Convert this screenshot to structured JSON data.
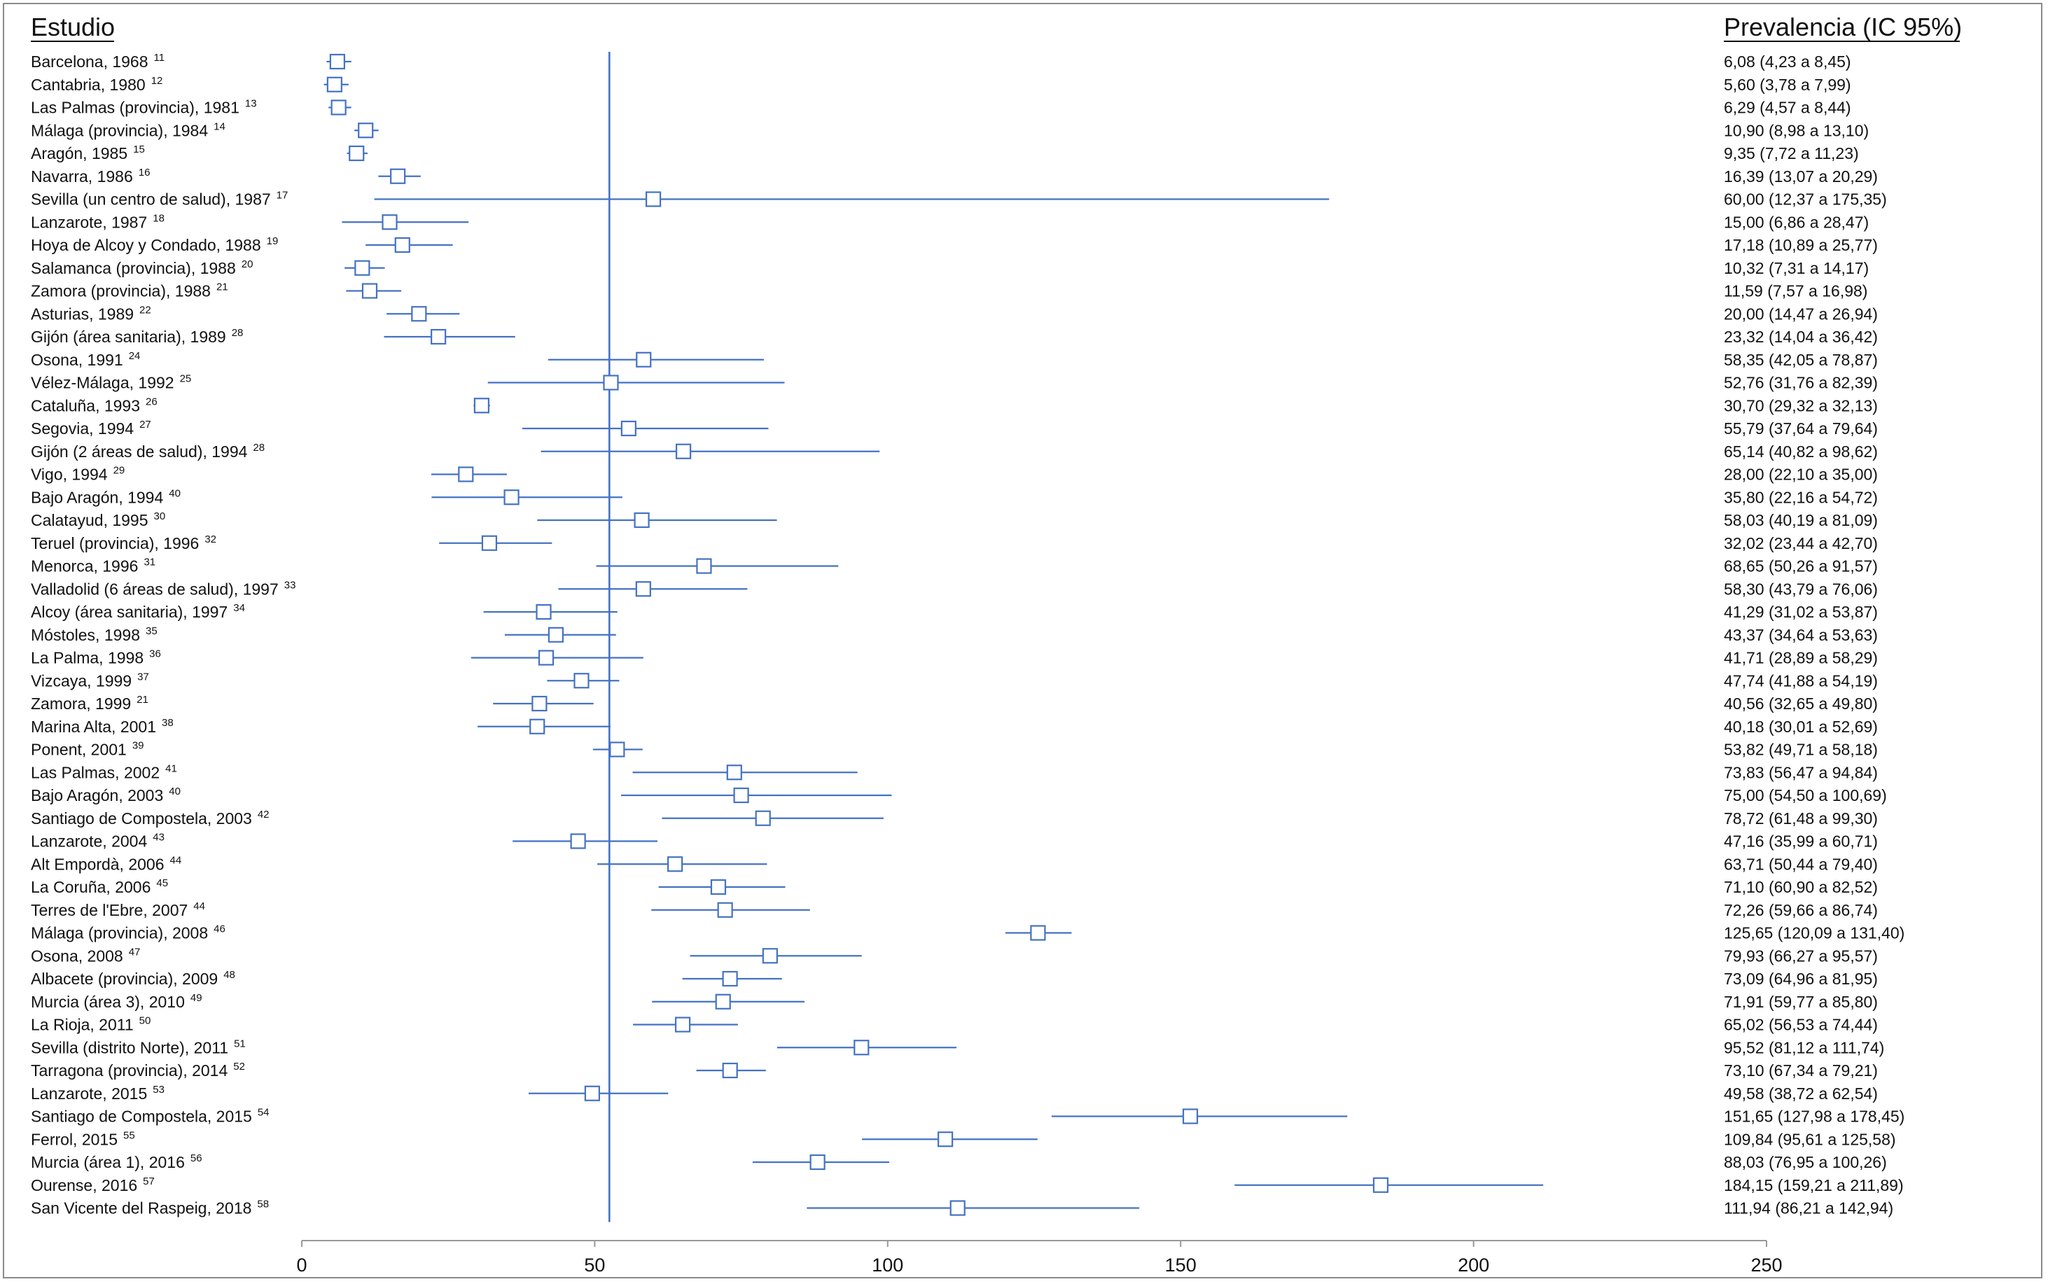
{
  "chart_data": {
    "type": "forest",
    "headers": {
      "study": "Estudio",
      "estimate": "Prevalencia (IC 95%)"
    },
    "reference_line": 52.5,
    "xlim": [
      0,
      250
    ],
    "xticks": [
      "0",
      "50",
      "100",
      "150",
      "200",
      "250"
    ],
    "xtick_values": [
      0,
      50,
      100,
      150,
      200,
      250
    ],
    "color": "#4472c4",
    "rows": [
      {
        "label": "Barcelona, 1968",
        "ref": "11",
        "est": 6.08,
        "lo": 4.23,
        "hi": 8.45,
        "text": "6,08 (4,23 a 8,45)"
      },
      {
        "label": "Cantabria, 1980",
        "ref": "12",
        "est": 5.6,
        "lo": 3.78,
        "hi": 7.99,
        "text": "5,60 (3,78 a 7,99)"
      },
      {
        "label": "Las Palmas (provincia), 1981",
        "ref": "13",
        "est": 6.29,
        "lo": 4.57,
        "hi": 8.44,
        "text": "6,29 (4,57 a 8,44)"
      },
      {
        "label": "Málaga (provincia), 1984",
        "ref": "14",
        "est": 10.9,
        "lo": 8.98,
        "hi": 13.1,
        "text": "10,90 (8,98 a 13,10)"
      },
      {
        "label": "Aragón, 1985",
        "ref": "15",
        "est": 9.35,
        "lo": 7.72,
        "hi": 11.23,
        "text": "9,35 (7,72 a 11,23)"
      },
      {
        "label": "Navarra, 1986",
        "ref": "16",
        "est": 16.39,
        "lo": 13.07,
        "hi": 20.29,
        "text": "16,39 (13,07 a 20,29)"
      },
      {
        "label": "Sevilla (un centro de salud), 1987",
        "ref": "17",
        "est": 60.0,
        "lo": 12.37,
        "hi": 175.35,
        "text": "60,00 (12,37 a 175,35)"
      },
      {
        "label": "Lanzarote, 1987",
        "ref": "18",
        "est": 15.0,
        "lo": 6.86,
        "hi": 28.47,
        "text": "15,00 (6,86 a 28,47)"
      },
      {
        "label": "Hoya de Alcoy y Condado, 1988",
        "ref": "19",
        "est": 17.18,
        "lo": 10.89,
        "hi": 25.77,
        "text": "17,18 (10,89 a 25,77)"
      },
      {
        "label": "Salamanca (provincia), 1988",
        "ref": "20",
        "est": 10.32,
        "lo": 7.31,
        "hi": 14.17,
        "text": "10,32 (7,31 a 14,17)"
      },
      {
        "label": "Zamora (provincia), 1988",
        "ref": "21",
        "est": 11.59,
        "lo": 7.57,
        "hi": 16.98,
        "text": "11,59 (7,57 a 16,98)"
      },
      {
        "label": "Asturias, 1989",
        "ref": "22",
        "est": 20.0,
        "lo": 14.47,
        "hi": 26.94,
        "text": "20,00 (14,47 a 26,94)"
      },
      {
        "label": "Gijón (área sanitaria), 1989",
        "ref": "28",
        "est": 23.32,
        "lo": 14.04,
        "hi": 36.42,
        "text": "23,32 (14,04 a 36,42)"
      },
      {
        "label": "Osona, 1991",
        "ref": "24",
        "est": 58.35,
        "lo": 42.05,
        "hi": 78.87,
        "text": "58,35 (42,05 a 78,87)"
      },
      {
        "label": "Vélez-Málaga, 1992",
        "ref": "25",
        "est": 52.76,
        "lo": 31.76,
        "hi": 82.39,
        "text": "52,76 (31,76 a 82,39)"
      },
      {
        "label": "Cataluña, 1993",
        "ref": "26",
        "est": 30.7,
        "lo": 29.32,
        "hi": 32.13,
        "text": "30,70 (29,32 a 32,13)"
      },
      {
        "label": "Segovia, 1994",
        "ref": "27",
        "est": 55.79,
        "lo": 37.64,
        "hi": 79.64,
        "text": "55,79 (37,64 a 79,64)"
      },
      {
        "label": "Gijón (2 áreas de salud), 1994",
        "ref": "28",
        "est": 65.14,
        "lo": 40.82,
        "hi": 98.62,
        "text": "65,14 (40,82 a 98,62)"
      },
      {
        "label": "Vigo, 1994",
        "ref": "29",
        "est": 28.0,
        "lo": 22.1,
        "hi": 35.0,
        "text": "28,00 (22,10 a 35,00)"
      },
      {
        "label": "Bajo Aragón, 1994",
        "ref": "40",
        "est": 35.8,
        "lo": 22.16,
        "hi": 54.72,
        "text": "35,80 (22,16 a 54,72)"
      },
      {
        "label": "Calatayud, 1995",
        "ref": "30",
        "est": 58.03,
        "lo": 40.19,
        "hi": 81.09,
        "text": "58,03 (40,19 a 81,09)"
      },
      {
        "label": "Teruel (provincia), 1996",
        "ref": "32",
        "est": 32.02,
        "lo": 23.44,
        "hi": 42.7,
        "text": "32,02 (23,44 a 42,70)"
      },
      {
        "label": "Menorca, 1996",
        "ref": "31",
        "est": 68.65,
        "lo": 50.26,
        "hi": 91.57,
        "text": "68,65 (50,26 a 91,57)"
      },
      {
        "label": "Valladolid (6 áreas de salud), 1997",
        "ref": "33",
        "est": 58.3,
        "lo": 43.79,
        "hi": 76.06,
        "text": "58,30 (43,79 a 76,06)"
      },
      {
        "label": "Alcoy (área sanitaria), 1997",
        "ref": "34",
        "est": 41.29,
        "lo": 31.02,
        "hi": 53.87,
        "text": "41,29 (31,02 a 53,87)"
      },
      {
        "label": "Móstoles, 1998",
        "ref": "35",
        "est": 43.37,
        "lo": 34.64,
        "hi": 53.63,
        "text": "43,37 (34,64 a 53,63)"
      },
      {
        "label": "La Palma, 1998",
        "ref": "36",
        "est": 41.71,
        "lo": 28.89,
        "hi": 58.29,
        "text": "41,71 (28,89 a 58,29)"
      },
      {
        "label": "Vizcaya, 1999",
        "ref": "37",
        "est": 47.74,
        "lo": 41.88,
        "hi": 54.19,
        "text": "47,74 (41,88 a 54,19)"
      },
      {
        "label": "Zamora, 1999",
        "ref": "21",
        "est": 40.56,
        "lo": 32.65,
        "hi": 49.8,
        "text": "40,56 (32,65 a 49,80)"
      },
      {
        "label": "Marina Alta, 2001",
        "ref": "38",
        "est": 40.18,
        "lo": 30.01,
        "hi": 52.69,
        "text": "40,18 (30,01 a 52,69)"
      },
      {
        "label": "Ponent, 2001",
        "ref": "39",
        "est": 53.82,
        "lo": 49.71,
        "hi": 58.18,
        "text": "53,82 (49,71 a 58,18)"
      },
      {
        "label": "Las Palmas, 2002",
        "ref": "41",
        "est": 73.83,
        "lo": 56.47,
        "hi": 94.84,
        "text": "73,83 (56,47 a 94,84)"
      },
      {
        "label": "Bajo Aragón, 2003",
        "ref": "40",
        "est": 75.0,
        "lo": 54.5,
        "hi": 100.69,
        "text": "75,00 (54,50 a 100,69)"
      },
      {
        "label": "Santiago de Compostela, 2003",
        "ref": "42",
        "est": 78.72,
        "lo": 61.48,
        "hi": 99.3,
        "text": "78,72 (61,48 a 99,30)"
      },
      {
        "label": "Lanzarote, 2004",
        "ref": "43",
        "est": 47.16,
        "lo": 35.99,
        "hi": 60.71,
        "text": "47,16 (35,99 a 60,71)"
      },
      {
        "label": "Alt Empordà, 2006",
        "ref": "44",
        "est": 63.71,
        "lo": 50.44,
        "hi": 79.4,
        "text": "63,71 (50,44 a 79,40)"
      },
      {
        "label": "La Coruña, 2006",
        "ref": "45",
        "est": 71.1,
        "lo": 60.9,
        "hi": 82.52,
        "text": "71,10 (60,90 a 82,52)"
      },
      {
        "label": "Terres de l'Ebre, 2007",
        "ref": "44",
        "est": 72.26,
        "lo": 59.66,
        "hi": 86.74,
        "text": "72,26 (59,66 a 86,74)"
      },
      {
        "label": "Málaga (provincia), 2008",
        "ref": "46",
        "est": 125.65,
        "lo": 120.09,
        "hi": 131.4,
        "text": "125,65 (120,09 a 131,40)"
      },
      {
        "label": "Osona, 2008",
        "ref": "47",
        "est": 79.93,
        "lo": 66.27,
        "hi": 95.57,
        "text": "79,93 (66,27 a 95,57)"
      },
      {
        "label": "Albacete (provincia), 2009",
        "ref": "48",
        "est": 73.09,
        "lo": 64.96,
        "hi": 81.95,
        "text": "73,09 (64,96 a 81,95)"
      },
      {
        "label": "Murcia (área 3), 2010",
        "ref": "49",
        "est": 71.91,
        "lo": 59.77,
        "hi": 85.8,
        "text": "71,91 (59,77 a 85,80)"
      },
      {
        "label": "La Rioja, 2011",
        "ref": "50",
        "est": 65.02,
        "lo": 56.53,
        "hi": 74.44,
        "text": "65,02 (56,53 a 74,44)"
      },
      {
        "label": "Sevilla (distrito Norte), 2011",
        "ref": "51",
        "est": 95.52,
        "lo": 81.12,
        "hi": 111.74,
        "text": "95,52 (81,12 a 111,74)"
      },
      {
        "label": "Tarragona (provincia), 2014",
        "ref": "52",
        "est": 73.1,
        "lo": 67.34,
        "hi": 79.21,
        "text": "73,10 (67,34 a 79,21)"
      },
      {
        "label": "Lanzarote, 2015",
        "ref": "53",
        "est": 49.58,
        "lo": 38.72,
        "hi": 62.54,
        "text": "49,58 (38,72 a 62,54)"
      },
      {
        "label": "Santiago de Compostela, 2015",
        "ref": "54",
        "est": 151.65,
        "lo": 127.98,
        "hi": 178.45,
        "text": "151,65 (127,98 a 178,45)"
      },
      {
        "label": "Ferrol, 2015",
        "ref": "55",
        "est": 109.84,
        "lo": 95.61,
        "hi": 125.58,
        "text": "109,84 (95,61 a 125,58)"
      },
      {
        "label": "Murcia (área 1), 2016",
        "ref": "56",
        "est": 88.03,
        "lo": 76.95,
        "hi": 100.26,
        "text": "88,03 (76,95 a 100,26)"
      },
      {
        "label": "Ourense, 2016",
        "ref": "57",
        "est": 184.15,
        "lo": 159.21,
        "hi": 211.89,
        "text": "184,15 (159,21 a 211,89)"
      },
      {
        "label": "San Vicente del Raspeig, 2018",
        "ref": "58",
        "est": 111.94,
        "lo": 86.21,
        "hi": 142.94,
        "text": "111,94 (86,21 a 142,94)"
      }
    ]
  }
}
